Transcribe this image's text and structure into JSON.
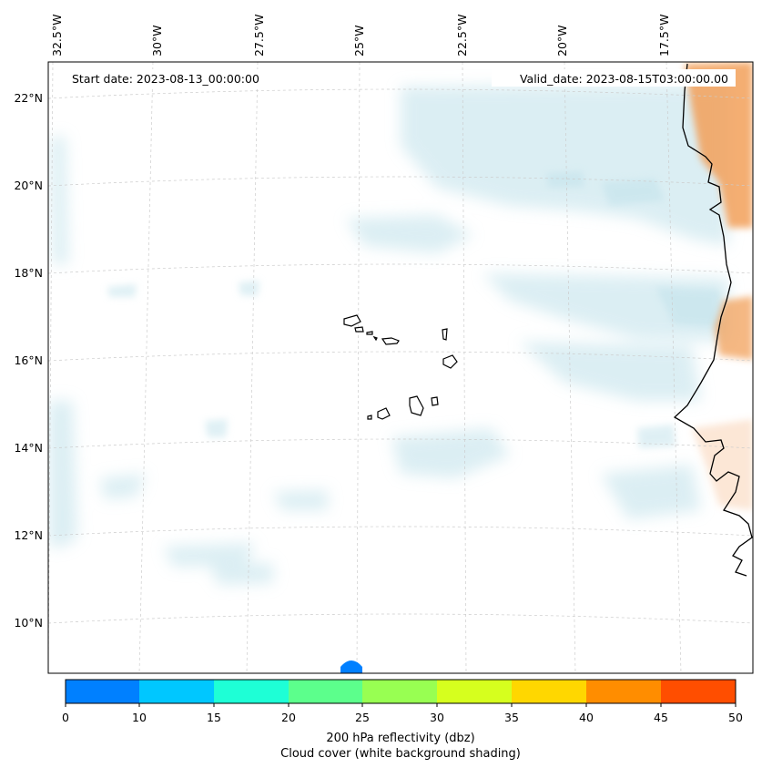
{
  "map": {
    "start_date": "Start date: 2023-08-13_00:00:00",
    "valid_date": "Valid_date: 2023-08-15T03:00:00.00",
    "lon_labels": [
      "32.5°W",
      "30°W",
      "27.5°W",
      "25°W",
      "22.5°W",
      "20°W",
      "17.5°W"
    ],
    "lat_labels": [
      "22°N",
      "20°N",
      "18°N",
      "16°N",
      "14°N",
      "12°N",
      "10°N"
    ],
    "cloud_color": "#bfe1ea",
    "echo_color": "#f2a05a"
  },
  "colorbar": {
    "ticks": [
      "0",
      "10",
      "15",
      "20",
      "25",
      "30",
      "35",
      "40",
      "45",
      "50"
    ],
    "colors": [
      "#0080ff",
      "#00c7ff",
      "#1effd6",
      "#5cff8c",
      "#98ff52",
      "#d6ff1e",
      "#ffd700",
      "#ff8d00",
      "#ff4e00"
    ],
    "label_line1": "200 hPa reflectivity (dbz)",
    "label_line2": "Cloud cover (white background shading)"
  }
}
